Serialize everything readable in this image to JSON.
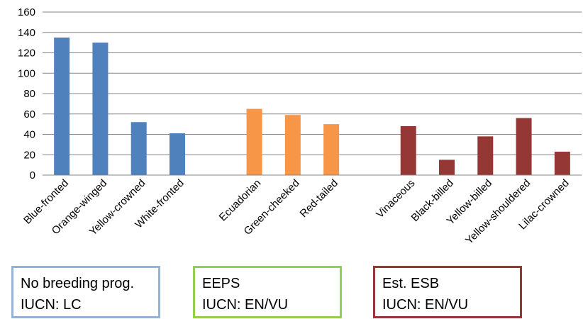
{
  "chart_data": {
    "type": "bar",
    "title": "",
    "xlabel": "",
    "ylabel": "",
    "ylim": [
      0,
      160
    ],
    "yticks": [
      0,
      20,
      40,
      60,
      80,
      100,
      120,
      140,
      160
    ],
    "grid": true,
    "categories": [
      "Blue-fronted",
      "Orange-winged",
      "Yellow-crowned",
      "White-fronted",
      "",
      "Ecuadorian",
      "Green-cheeked",
      "Red-tailed",
      "",
      "Vinaceous",
      "Black-billed",
      "Yellow-billed",
      "Yellow-shouldered",
      "Lilac-crowned"
    ],
    "values": [
      135,
      130,
      52,
      41,
      null,
      65,
      59,
      50,
      null,
      48,
      15,
      38,
      56,
      23
    ],
    "groups": [
      {
        "lines": [
          "No breeding prog.",
          "IUCN: LC"
        ],
        "color": "#4f81bd",
        "border_color": "#95b3d7",
        "categories": [
          "Blue-fronted",
          "Orange-winged",
          "Yellow-crowned",
          "White-fronted"
        ]
      },
      {
        "lines": [
          "EEPS",
          "IUCN: EN/VU"
        ],
        "color": "#f79646",
        "border_color": "#92d050",
        "categories": [
          "Ecuadorian",
          "Green-cheeked",
          "Red-tailed"
        ]
      },
      {
        "lines": [
          "Est. ESB",
          "IUCN: EN/VU"
        ],
        "color": "#953735",
        "border_color": "#953735",
        "categories": [
          "Vinaceous",
          "Black-billed",
          "Yellow-billed",
          "Yellow-shouldered",
          "Lilac-crowned"
        ]
      }
    ]
  }
}
